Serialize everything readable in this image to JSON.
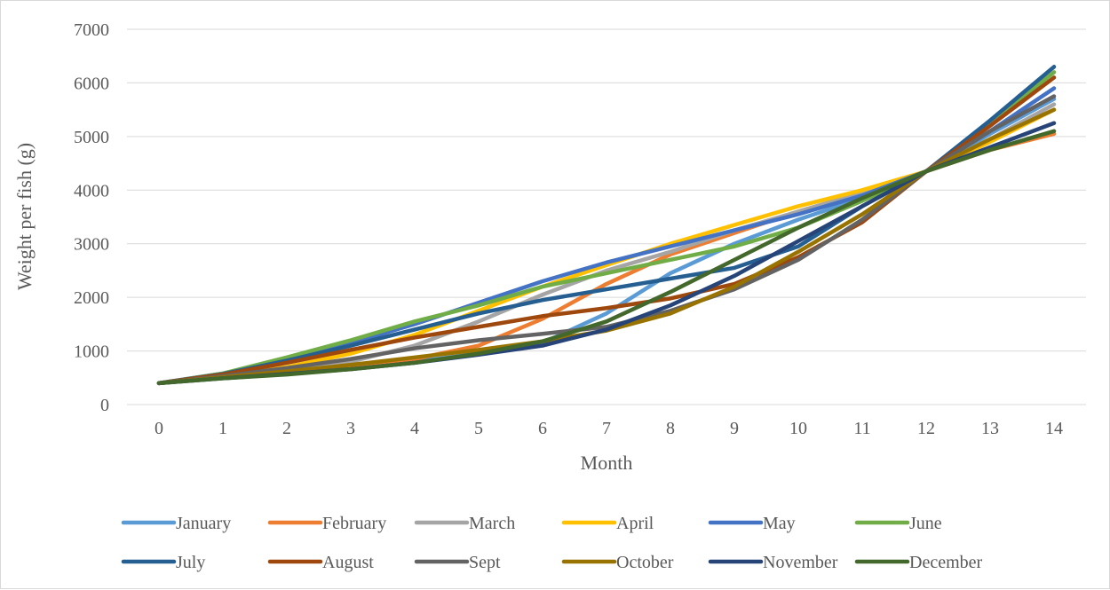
{
  "chart_data": {
    "type": "line",
    "title": "",
    "xlabel": "Month",
    "ylabel": "Weight per fish (g)",
    "x": [
      0,
      1,
      2,
      3,
      4,
      5,
      6,
      7,
      8,
      9,
      10,
      11,
      12,
      13,
      14
    ],
    "ylim": [
      0,
      7000
    ],
    "yticks": [
      0,
      1000,
      2000,
      3000,
      4000,
      5000,
      6000,
      7000
    ],
    "grid": "horizontal",
    "legend_position": "bottom",
    "series": [
      {
        "name": "January",
        "color": "#5B9BD5",
        "values": [
          400,
          500,
          580,
          680,
          800,
          950,
          1150,
          1700,
          2450,
          3000,
          3450,
          3850,
          4350,
          5050,
          5700
        ]
      },
      {
        "name": "February",
        "color": "#ED7D31",
        "values": [
          400,
          500,
          590,
          700,
          850,
          1100,
          1600,
          2250,
          2800,
          3200,
          3600,
          3950,
          4350,
          4750,
          5050
        ]
      },
      {
        "name": "March",
        "color": "#A5A5A5",
        "values": [
          400,
          510,
          620,
          800,
          1100,
          1550,
          2050,
          2500,
          2850,
          3250,
          3600,
          3950,
          4350,
          4950,
          5600
        ]
      },
      {
        "name": "April",
        "color": "#FFC000",
        "values": [
          400,
          540,
          700,
          950,
          1300,
          1750,
          2200,
          2600,
          3000,
          3350,
          3700,
          4000,
          4350,
          4900,
          5500
        ]
      },
      {
        "name": "May",
        "color": "#4472C4",
        "values": [
          400,
          580,
          850,
          1150,
          1500,
          1900,
          2300,
          2650,
          2950,
          3250,
          3550,
          3900,
          4350,
          5100,
          5900
        ]
      },
      {
        "name": "June",
        "color": "#70AD47",
        "values": [
          400,
          580,
          880,
          1200,
          1550,
          1850,
          2200,
          2450,
          2700,
          2950,
          3300,
          3800,
          4350,
          5250,
          6200
        ]
      },
      {
        "name": "July",
        "color": "#255E91",
        "values": [
          400,
          570,
          820,
          1100,
          1400,
          1700,
          1950,
          2150,
          2350,
          2550,
          2950,
          3700,
          4350,
          5300,
          6300
        ]
      },
      {
        "name": "August",
        "color": "#9E480E",
        "values": [
          400,
          560,
          780,
          1020,
          1250,
          1450,
          1650,
          1800,
          1980,
          2250,
          2750,
          3400,
          4350,
          5200,
          6100
        ]
      },
      {
        "name": "Sept",
        "color": "#636363",
        "values": [
          400,
          530,
          680,
          850,
          1050,
          1200,
          1320,
          1450,
          1750,
          2150,
          2700,
          3450,
          4350,
          5100,
          5750
        ]
      },
      {
        "name": "October",
        "color": "#997300",
        "values": [
          400,
          510,
          620,
          740,
          880,
          1020,
          1180,
          1380,
          1700,
          2200,
          2850,
          3550,
          4350,
          4950,
          5500
        ]
      },
      {
        "name": "November",
        "color": "#264478",
        "values": [
          400,
          490,
          570,
          660,
          780,
          930,
          1100,
          1400,
          1850,
          2400,
          3050,
          3700,
          4350,
          4800,
          5250
        ]
      },
      {
        "name": "December",
        "color": "#43682B",
        "values": [
          400,
          490,
          560,
          660,
          780,
          950,
          1180,
          1550,
          2100,
          2700,
          3300,
          3850,
          4350,
          4750,
          5100
        ]
      }
    ]
  }
}
